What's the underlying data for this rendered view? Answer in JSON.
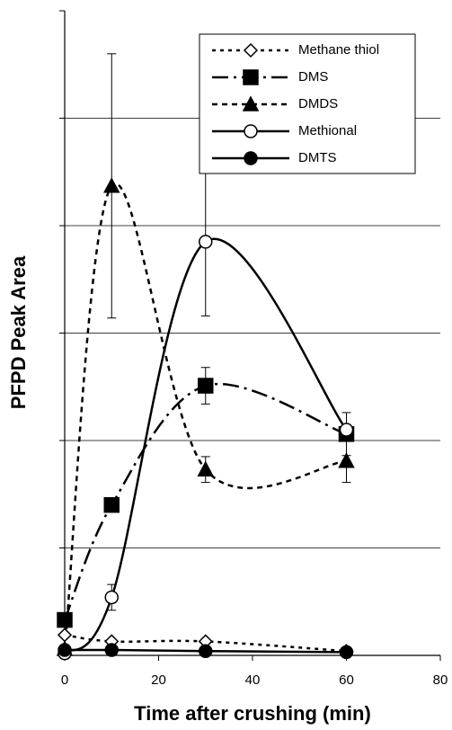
{
  "chart_data": {
    "type": "line",
    "x_label": "Time after crushing (min)",
    "y_label": "PFPD Peak Area",
    "x": [
      0,
      10,
      30,
      60
    ],
    "xlim": [
      0,
      80
    ],
    "xticks": [
      0,
      20,
      40,
      60,
      80
    ],
    "ylim": [
      0,
      6
    ],
    "yticks": [
      0,
      1,
      2,
      3,
      4,
      5,
      6
    ],
    "grid": true,
    "smooth": true,
    "legend": "upper right",
    "series": [
      {
        "name": "Methane thiol",
        "color": "#000000",
        "marker": "diamond-open",
        "dash": "4,5",
        "values": [
          0.19,
          0.13,
          0.13,
          0.04
        ],
        "errors": [
          null,
          null,
          null,
          null
        ]
      },
      {
        "name": "DMS",
        "color": "#000000",
        "marker": "square",
        "dash": "18,6,3,6",
        "values": [
          0.33,
          1.4,
          2.51,
          2.06
        ],
        "errors": [
          0.05,
          0.05,
          0.17,
          0.2
        ]
      },
      {
        "name": "DMDS",
        "color": "#000000",
        "marker": "triangle",
        "dash": "6,5",
        "values": [
          0.06,
          4.37,
          1.73,
          1.81
        ],
        "errors": [
          null,
          1.23,
          0.12,
          0.2
        ]
      },
      {
        "name": "Methional",
        "color": "#000000",
        "marker": "circle-open",
        "dash": "none",
        "values": [
          0.02,
          0.54,
          3.85,
          2.1
        ],
        "errors": [
          null,
          0.12,
          0.69,
          null
        ]
      },
      {
        "name": "DMTS",
        "color": "#000000",
        "marker": "circle",
        "dash": "none",
        "values": [
          0.05,
          0.05,
          0.04,
          0.03
        ],
        "errors": [
          null,
          null,
          null,
          null
        ]
      }
    ]
  }
}
